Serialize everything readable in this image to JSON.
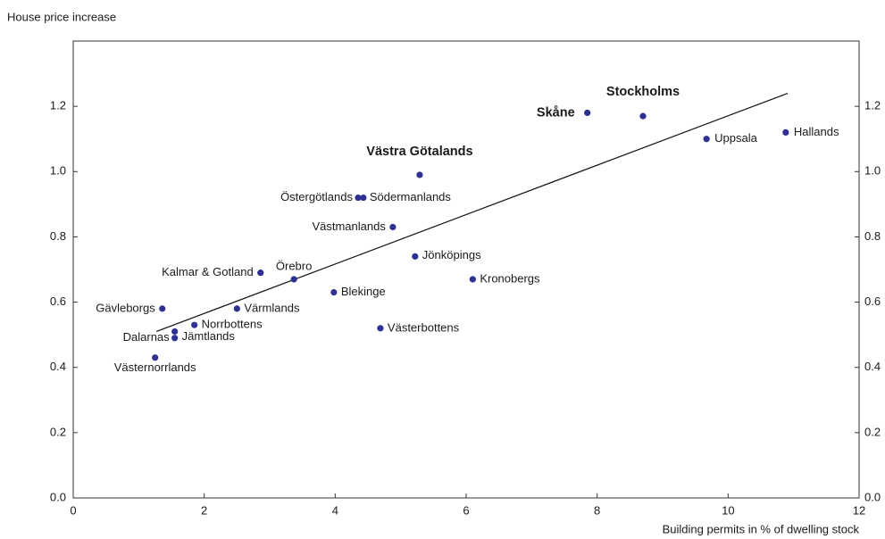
{
  "chart_data": {
    "type": "scatter",
    "y_label": "House price increase",
    "x_label": "Building permits in % of dwelling stock",
    "color": "#2e3192",
    "xlim": [
      0,
      12
    ],
    "xticks": [
      0,
      2,
      4,
      6,
      8,
      10,
      12
    ],
    "ylim": [
      0,
      1.4
    ],
    "yticks": [
      {
        "value": 0,
        "label": "0.0"
      },
      0.2,
      0.4,
      0.6,
      0.8,
      {
        "value": 1,
        "label": "1.0"
      },
      1.2
    ],
    "y2lim": [
      0,
      1.4
    ],
    "y2ticks": [
      {
        "value": 0,
        "label": "0.0"
      },
      0.2,
      0.4,
      0.6,
      0.8,
      {
        "value": 1,
        "label": "1.0"
      },
      1.2
    ],
    "points": [
      {
        "label": "Stockholms",
        "x": 8.7,
        "y": 1.17,
        "bold": true
      },
      {
        "label": "Skåne",
        "x": 7.85,
        "y": 1.18,
        "bold": true
      },
      {
        "label": "Uppsala",
        "x": 9.67,
        "y": 1.1
      },
      {
        "label": "Hallands",
        "x": 10.88,
        "y": 1.12
      },
      {
        "label": "Västra Götalands",
        "x": 5.29,
        "y": 0.99,
        "bold": true
      },
      {
        "label": "Östergötlands",
        "x": 4.35,
        "y": 0.92
      },
      {
        "label": "Södermanlands",
        "x": 4.43,
        "y": 0.92
      },
      {
        "label": "Västmanlands",
        "x": 4.88,
        "y": 0.83
      },
      {
        "label": "Jönköpings",
        "x": 5.22,
        "y": 0.74
      },
      {
        "label": "Kronobergs",
        "x": 6.1,
        "y": 0.67
      },
      {
        "label": "Kalmar & Gotland",
        "x": 2.86,
        "y": 0.69
      },
      {
        "label": "Örebro",
        "x": 3.37,
        "y": 0.67
      },
      {
        "label": "Blekinge",
        "x": 3.98,
        "y": 0.63
      },
      {
        "label": "Gävleborgs",
        "x": 1.36,
        "y": 0.58
      },
      {
        "label": "Värmlands",
        "x": 2.5,
        "y": 0.58
      },
      {
        "label": "Norrbottens",
        "x": 1.85,
        "y": 0.53
      },
      {
        "label": "Dalarnas",
        "x": 1.55,
        "y": 0.51
      },
      {
        "label": "Jämtlands",
        "x": 1.55,
        "y": 0.49
      },
      {
        "label": "Västerbottens",
        "x": 4.69,
        "y": 0.52
      },
      {
        "label": "Västernorrlands",
        "x": 1.25,
        "y": 0.43
      }
    ],
    "trendline": {
      "x": [
        1.27,
        10.91
      ],
      "y": [
        0.51,
        1.24
      ]
    }
  }
}
